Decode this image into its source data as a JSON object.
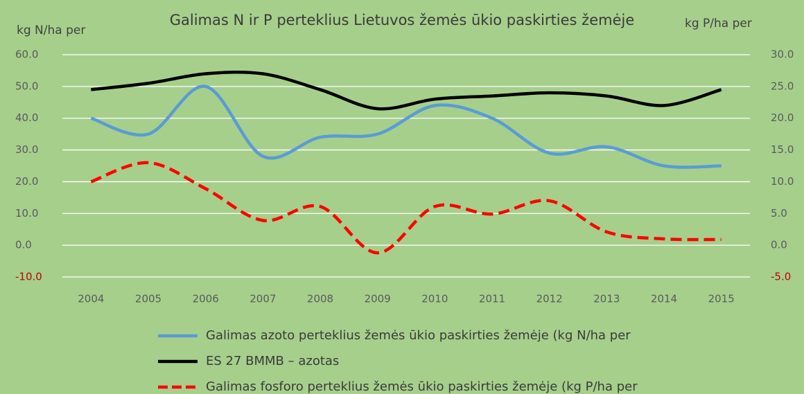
{
  "chart_data": {
    "type": "line",
    "title": "Galimas N ir P perteklius Lietuvos žemės ūkio paskirties žemėje",
    "y_label": "kg N/ha per",
    "y2_label": "kg P/ha per",
    "categories": [
      "2004",
      "2005",
      "2006",
      "2007",
      "2008",
      "2009",
      "2010",
      "2011",
      "2012",
      "2013",
      "2014",
      "2015"
    ],
    "series": [
      {
        "name": "Galimas azoto perteklius žemės ūkio paskirties žemėje (kg N/ha per",
        "color": "#5b9bd5",
        "dash": false,
        "values": [
          40,
          35,
          50,
          28,
          34,
          35,
          44,
          40,
          29,
          31,
          25,
          25
        ]
      },
      {
        "name": "ES 27 BMMB – azotas",
        "color": "#000000",
        "dash": false,
        "values": [
          49,
          51,
          54,
          54,
          49,
          43,
          46,
          47,
          48,
          47,
          44,
          49
        ]
      },
      {
        "name": "Galimas fosforo perteklius žemės ūkio paskirties žemėje (kg P/ha per",
        "color": "#ff0000",
        "dash": true,
        "axis": "y2",
        "values": [
          10.0,
          13.0,
          8.9,
          3.9,
          6.1,
          -1.2,
          6.1,
          4.9,
          7.0,
          2.1,
          1.0,
          0.9
        ]
      }
    ],
    "ylim": [
      -10,
      60
    ],
    "yticks": [
      {
        "value": -10,
        "label": "-10.0"
      },
      {
        "value": 0,
        "label": "0.0"
      },
      {
        "value": 10,
        "label": "10.0"
      },
      {
        "value": 20,
        "label": "20.0"
      },
      {
        "value": 30,
        "label": "30.0"
      },
      {
        "value": 40,
        "label": "40.0"
      },
      {
        "value": 50,
        "label": "50.0"
      },
      {
        "value": 60,
        "label": "60.0"
      }
    ],
    "y2lim": [
      -5,
      30
    ],
    "y2ticks": [
      {
        "value": -5,
        "label": "-5.0"
      },
      {
        "value": 0,
        "label": "0.0"
      },
      {
        "value": 5,
        "label": "5.0"
      },
      {
        "value": 10,
        "label": "10.0"
      },
      {
        "value": 15,
        "label": "15.0"
      },
      {
        "value": 20,
        "label": "20.0"
      },
      {
        "value": 25,
        "label": "25.0"
      },
      {
        "value": 30,
        "label": "30.0"
      }
    ],
    "grid": true
  }
}
